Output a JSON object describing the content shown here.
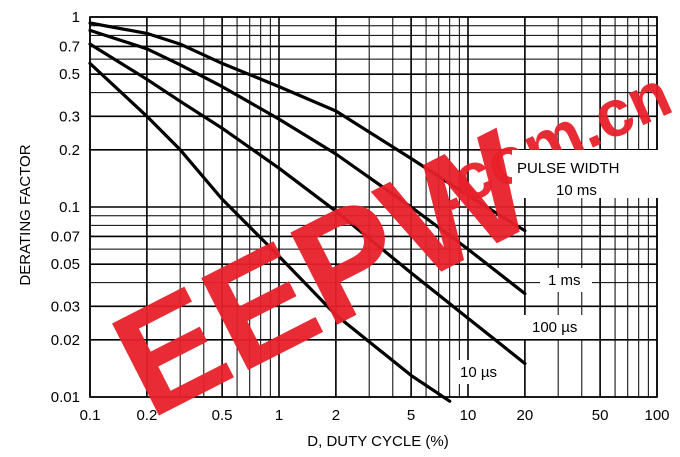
{
  "chart_data": {
    "type": "line",
    "title": "",
    "xlabel": "D, DUTY CYCLE (%)",
    "ylabel": "DERATING FACTOR",
    "xscale": "log",
    "yscale": "log",
    "xlim": [
      0.1,
      100
    ],
    "ylim": [
      0.01,
      1
    ],
    "grid": true,
    "x_ticks": [
      0.1,
      0.2,
      0.5,
      1,
      2,
      5,
      10,
      20,
      50,
      100
    ],
    "x_tick_labels": [
      "0.1",
      "0.2",
      "0.5",
      "1",
      "2",
      "5",
      "10",
      "20",
      "50",
      "100"
    ],
    "y_ticks": [
      0.01,
      0.02,
      0.03,
      0.05,
      0.07,
      0.1,
      0.2,
      0.3,
      0.5,
      0.7,
      1
    ],
    "y_tick_labels": [
      "0.01",
      "0.02",
      "0.03",
      "0.05",
      "0.07",
      "0.1",
      "0.2",
      "0.3",
      "0.5",
      "0.7",
      "1"
    ],
    "legend_title": "PULSE WIDTH",
    "series": [
      {
        "name": "10 ms",
        "x": [
          0.1,
          0.2,
          0.3,
          0.5,
          1,
          2,
          5,
          10,
          20
        ],
        "y": [
          0.93,
          0.82,
          0.72,
          0.57,
          0.43,
          0.32,
          0.18,
          0.115,
          0.075
        ]
      },
      {
        "name": "1 ms",
        "x": [
          0.1,
          0.2,
          0.3,
          0.5,
          1,
          2,
          5,
          10,
          20
        ],
        "y": [
          0.85,
          0.68,
          0.56,
          0.43,
          0.29,
          0.19,
          0.1,
          0.06,
          0.035
        ]
      },
      {
        "name": "100 µs",
        "x": [
          0.1,
          0.2,
          0.3,
          0.5,
          1,
          2,
          5,
          10,
          20
        ],
        "y": [
          0.72,
          0.47,
          0.36,
          0.26,
          0.16,
          0.095,
          0.045,
          0.026,
          0.015
        ]
      },
      {
        "name": "10 µs",
        "x": [
          0.1,
          0.2,
          0.3,
          0.5,
          1,
          2,
          5,
          8
        ],
        "y": [
          0.57,
          0.3,
          0.2,
          0.11,
          0.055,
          0.027,
          0.013,
          0.0095
        ]
      }
    ]
  },
  "watermark": {
    "text": "EEPW",
    "domain_text": ".com.cn",
    "color": "#e8202a"
  }
}
